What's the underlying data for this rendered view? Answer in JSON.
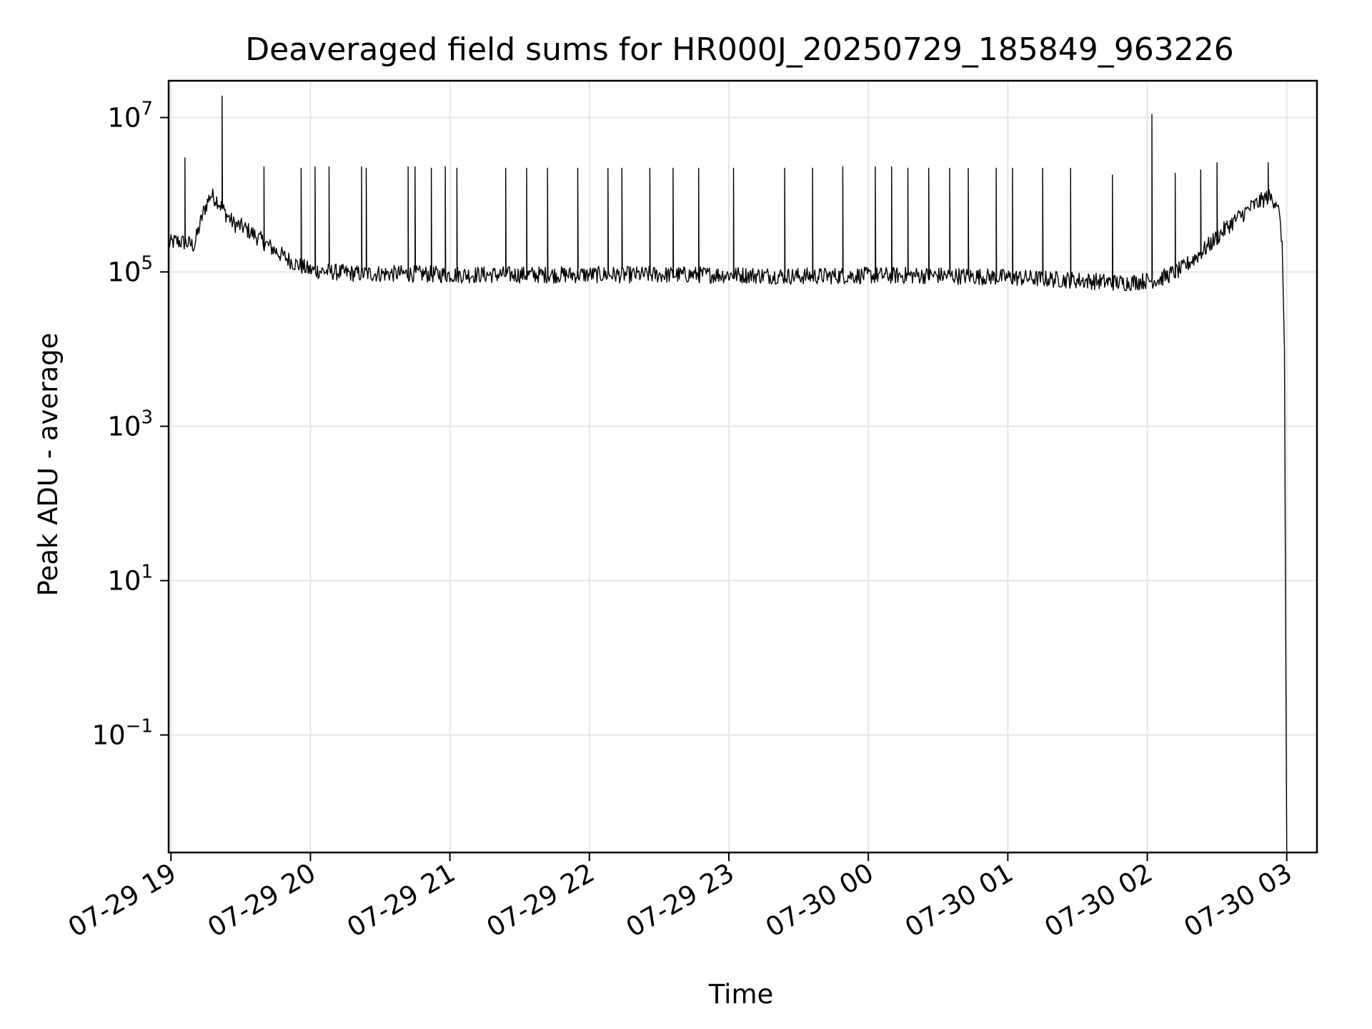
{
  "chart_data": {
    "type": "line",
    "title": "Deaveraged field sums for HR000J_20250729_185849_963226",
    "xlabel": "Time",
    "ylabel": "Peak ADU - average",
    "yscale": "log",
    "ylim": [
      0.003,
      30000000
    ],
    "xlim": [
      "2025-07-29 18:59",
      "2025-07-30 03:13"
    ],
    "grid": true,
    "line_color": "#000000",
    "grid_color": "#e6e6e6",
    "x_ticks": [
      {
        "value": "2025-07-29 19:00",
        "label": "07-29 19"
      },
      {
        "value": "2025-07-29 20:00",
        "label": "07-29 20"
      },
      {
        "value": "2025-07-29 21:00",
        "label": "07-29 21"
      },
      {
        "value": "2025-07-29 22:00",
        "label": "07-29 22"
      },
      {
        "value": "2025-07-29 23:00",
        "label": "07-29 23"
      },
      {
        "value": "2025-07-30 00:00",
        "label": "07-30 00"
      },
      {
        "value": "2025-07-30 01:00",
        "label": "07-30 01"
      },
      {
        "value": "2025-07-30 02:00",
        "label": "07-30 02"
      },
      {
        "value": "2025-07-30 03:00",
        "label": "07-30 03"
      }
    ],
    "y_ticks": [
      {
        "value": 10000000,
        "base": "10",
        "exp": "7"
      },
      {
        "value": 100000,
        "base": "10",
        "exp": "5"
      },
      {
        "value": 1000,
        "base": "10",
        "exp": "3"
      },
      {
        "value": 10,
        "base": "10",
        "exp": "1"
      },
      {
        "value": 0.1,
        "base": "10",
        "exp": "−1"
      }
    ],
    "series": [
      {
        "points": [
          [
            "2025-07-29 18:59",
            230000
          ],
          [
            "2025-07-29 19:02",
            250000
          ],
          [
            "2025-07-29 19:06",
            240000
          ],
          [
            "2025-07-29 19:10",
            220000
          ],
          [
            "2025-07-29 19:14",
            600000
          ],
          [
            "2025-07-29 19:17",
            1000000
          ],
          [
            "2025-07-29 19:20",
            850000
          ],
          [
            "2025-07-29 19:23",
            600000
          ],
          [
            "2025-07-29 19:27",
            420000
          ],
          [
            "2025-07-29 19:31",
            380000
          ],
          [
            "2025-07-29 19:36",
            300000
          ],
          [
            "2025-07-29 19:41",
            230000
          ],
          [
            "2025-07-29 19:47",
            170000
          ],
          [
            "2025-07-29 19:53",
            130000
          ],
          [
            "2025-07-29 20:00",
            105000
          ],
          [
            "2025-07-29 20:20",
            95000
          ],
          [
            "2025-07-29 20:40",
            95000
          ],
          [
            "2025-07-29 21:00",
            92000
          ],
          [
            "2025-07-29 21:30",
            92000
          ],
          [
            "2025-07-29 22:00",
            92000
          ],
          [
            "2025-07-29 22:30",
            92000
          ],
          [
            "2025-07-29 23:00",
            92000
          ],
          [
            "2025-07-29 23:30",
            88000
          ],
          [
            "2025-07-30 00:00",
            90000
          ],
          [
            "2025-07-30 00:30",
            90000
          ],
          [
            "2025-07-30 01:00",
            85000
          ],
          [
            "2025-07-30 01:30",
            78000
          ],
          [
            "2025-07-30 01:50",
            72000
          ],
          [
            "2025-07-30 02:05",
            80000
          ],
          [
            "2025-07-30 02:15",
            110000
          ],
          [
            "2025-07-30 02:25",
            200000
          ],
          [
            "2025-07-30 02:35",
            400000
          ],
          [
            "2025-07-30 02:45",
            700000
          ],
          [
            "2025-07-30 02:52",
            950000
          ],
          [
            "2025-07-30 02:56",
            800000
          ],
          [
            "2025-07-30 02:58",
            250000
          ],
          [
            "2025-07-30 02:59",
            10000
          ],
          [
            "2025-07-30 03:00",
            0.003
          ]
        ],
        "spikes": [
          [
            "2025-07-29 19:06",
            3000000
          ],
          [
            "2025-07-29 19:22",
            19000000
          ],
          [
            "2025-07-29 19:40",
            2300000
          ],
          [
            "2025-07-29 19:56",
            2200000
          ],
          [
            "2025-07-29 20:02",
            2300000
          ],
          [
            "2025-07-29 20:08",
            2300000
          ],
          [
            "2025-07-29 20:22",
            2300000
          ],
          [
            "2025-07-29 20:24",
            2200000
          ],
          [
            "2025-07-29 20:42",
            2300000
          ],
          [
            "2025-07-29 20:45",
            2300000
          ],
          [
            "2025-07-29 20:52",
            2200000
          ],
          [
            "2025-07-29 20:58",
            2300000
          ],
          [
            "2025-07-29 21:03",
            2200000
          ],
          [
            "2025-07-29 21:24",
            2200000
          ],
          [
            "2025-07-29 21:33",
            2200000
          ],
          [
            "2025-07-29 21:42",
            2200000
          ],
          [
            "2025-07-29 21:55",
            2200000
          ],
          [
            "2025-07-29 22:08",
            2200000
          ],
          [
            "2025-07-29 22:14",
            2200000
          ],
          [
            "2025-07-29 22:26",
            2200000
          ],
          [
            "2025-07-29 22:36",
            2200000
          ],
          [
            "2025-07-29 22:47",
            2200000
          ],
          [
            "2025-07-29 23:02",
            2200000
          ],
          [
            "2025-07-29 23:24",
            2200000
          ],
          [
            "2025-07-29 23:36",
            2200000
          ],
          [
            "2025-07-29 23:49",
            2300000
          ],
          [
            "2025-07-30 00:03",
            2300000
          ],
          [
            "2025-07-30 00:10",
            2300000
          ],
          [
            "2025-07-30 00:17",
            2200000
          ],
          [
            "2025-07-30 00:26",
            2200000
          ],
          [
            "2025-07-30 00:35",
            2200000
          ],
          [
            "2025-07-30 00:43",
            2200000
          ],
          [
            "2025-07-30 00:55",
            2200000
          ],
          [
            "2025-07-30 01:02",
            2200000
          ],
          [
            "2025-07-30 01:15",
            2200000
          ],
          [
            "2025-07-30 01:27",
            2200000
          ],
          [
            "2025-07-30 01:45",
            1800000
          ],
          [
            "2025-07-30 02:02",
            11000000
          ],
          [
            "2025-07-30 02:12",
            1900000
          ],
          [
            "2025-07-30 02:23",
            2100000
          ],
          [
            "2025-07-30 02:30",
            2600000
          ],
          [
            "2025-07-30 02:52",
            2600000
          ]
        ]
      }
    ]
  }
}
